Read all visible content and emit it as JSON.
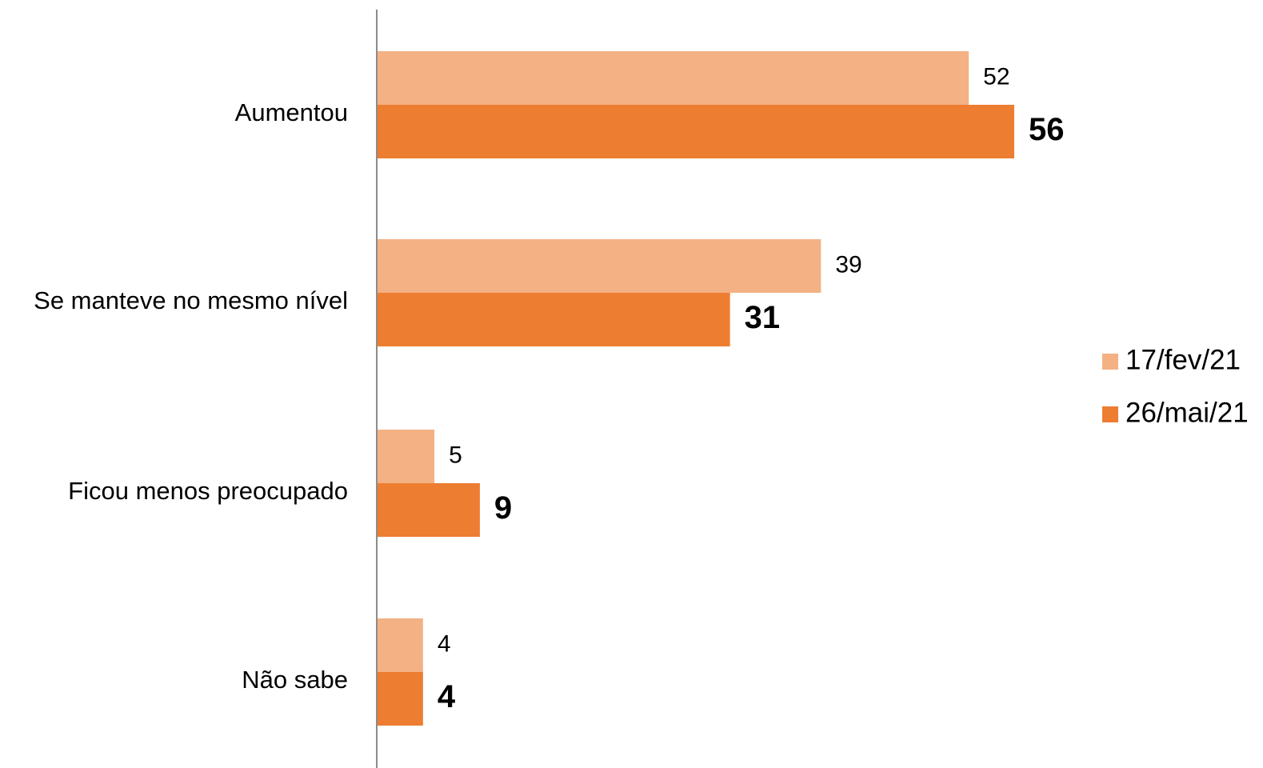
{
  "chart_data": {
    "type": "bar",
    "orientation": "horizontal",
    "categories": [
      "Aumentou",
      "Se manteve no mesmo nível",
      "Ficou menos preocupado",
      "Não sabe"
    ],
    "series": [
      {
        "name": "17/fev/21",
        "values": [
          52,
          39,
          5,
          4
        ],
        "color": "#F4B183"
      },
      {
        "name": "26/mai/21",
        "values": [
          56,
          31,
          9,
          4
        ],
        "color": "#ED7D31"
      }
    ],
    "xlim": [
      0,
      78
    ],
    "legend_position": "right",
    "grid": false
  }
}
